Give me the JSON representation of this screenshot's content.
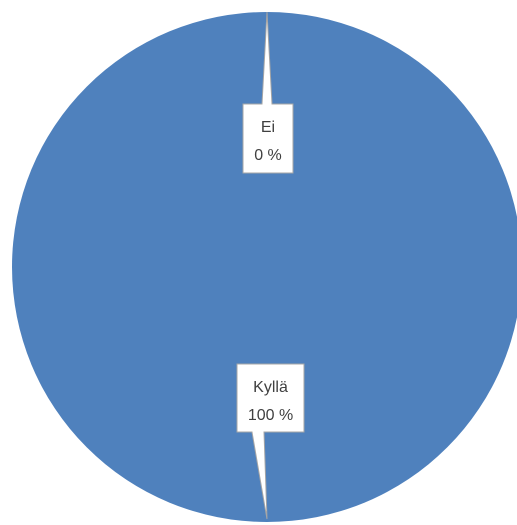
{
  "chart_data": {
    "type": "pie",
    "categories": [
      "Ei",
      "Kyllä"
    ],
    "values": [
      0,
      100
    ],
    "data_labels": [
      {
        "category": "Ei",
        "percent": "0 %"
      },
      {
        "category": "Kyllä",
        "percent": "100 %"
      }
    ],
    "colors": {
      "Ei": "#ffffff",
      "Kyllä": "#4f81bd"
    },
    "legend": "none"
  }
}
